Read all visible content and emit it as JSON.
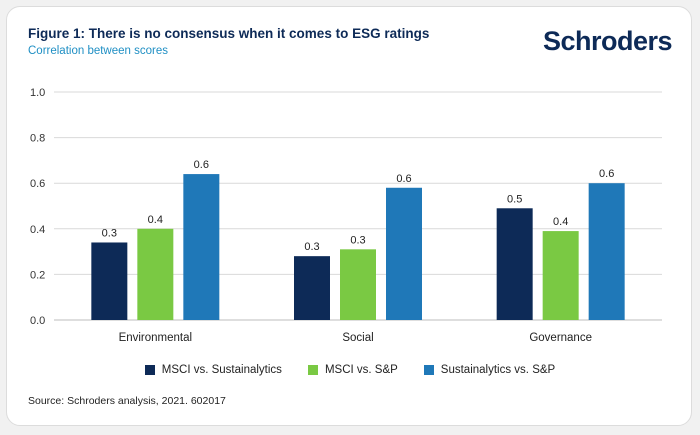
{
  "header": {
    "title": "Figure 1: There is no consensus when it comes to ESG ratings",
    "subtitle": "Correlation between scores",
    "brand": "Schroders"
  },
  "colors": {
    "series1": "#0d2a57",
    "series2": "#7ac943",
    "series3": "#1f78b8",
    "grid": "#d9d9d9",
    "axis_text": "#333333"
  },
  "chart_data": {
    "type": "bar",
    "categories": [
      "Environmental",
      "Social",
      "Governance"
    ],
    "series": [
      {
        "name": "MSCI vs. Sustainalytics",
        "values": [
          0.34,
          0.28,
          0.49
        ],
        "labels": [
          "0.3",
          "0.3",
          "0.5"
        ]
      },
      {
        "name": "MSCI vs. S&P",
        "values": [
          0.4,
          0.31,
          0.39
        ],
        "labels": [
          "0.4",
          "0.3",
          "0.4"
        ]
      },
      {
        "name": "Sustainalytics vs. S&P",
        "values": [
          0.64,
          0.58,
          0.6
        ],
        "labels": [
          "0.6",
          "0.6",
          "0.6"
        ]
      }
    ],
    "y_ticks": [
      "0.0",
      "0.2",
      "0.4",
      "0.6",
      "0.8",
      "1.0"
    ],
    "ylim": [
      0,
      1.0
    ],
    "grid": true,
    "legend": "bottom"
  },
  "source": "Source: Schroders analysis, 2021. 602017"
}
